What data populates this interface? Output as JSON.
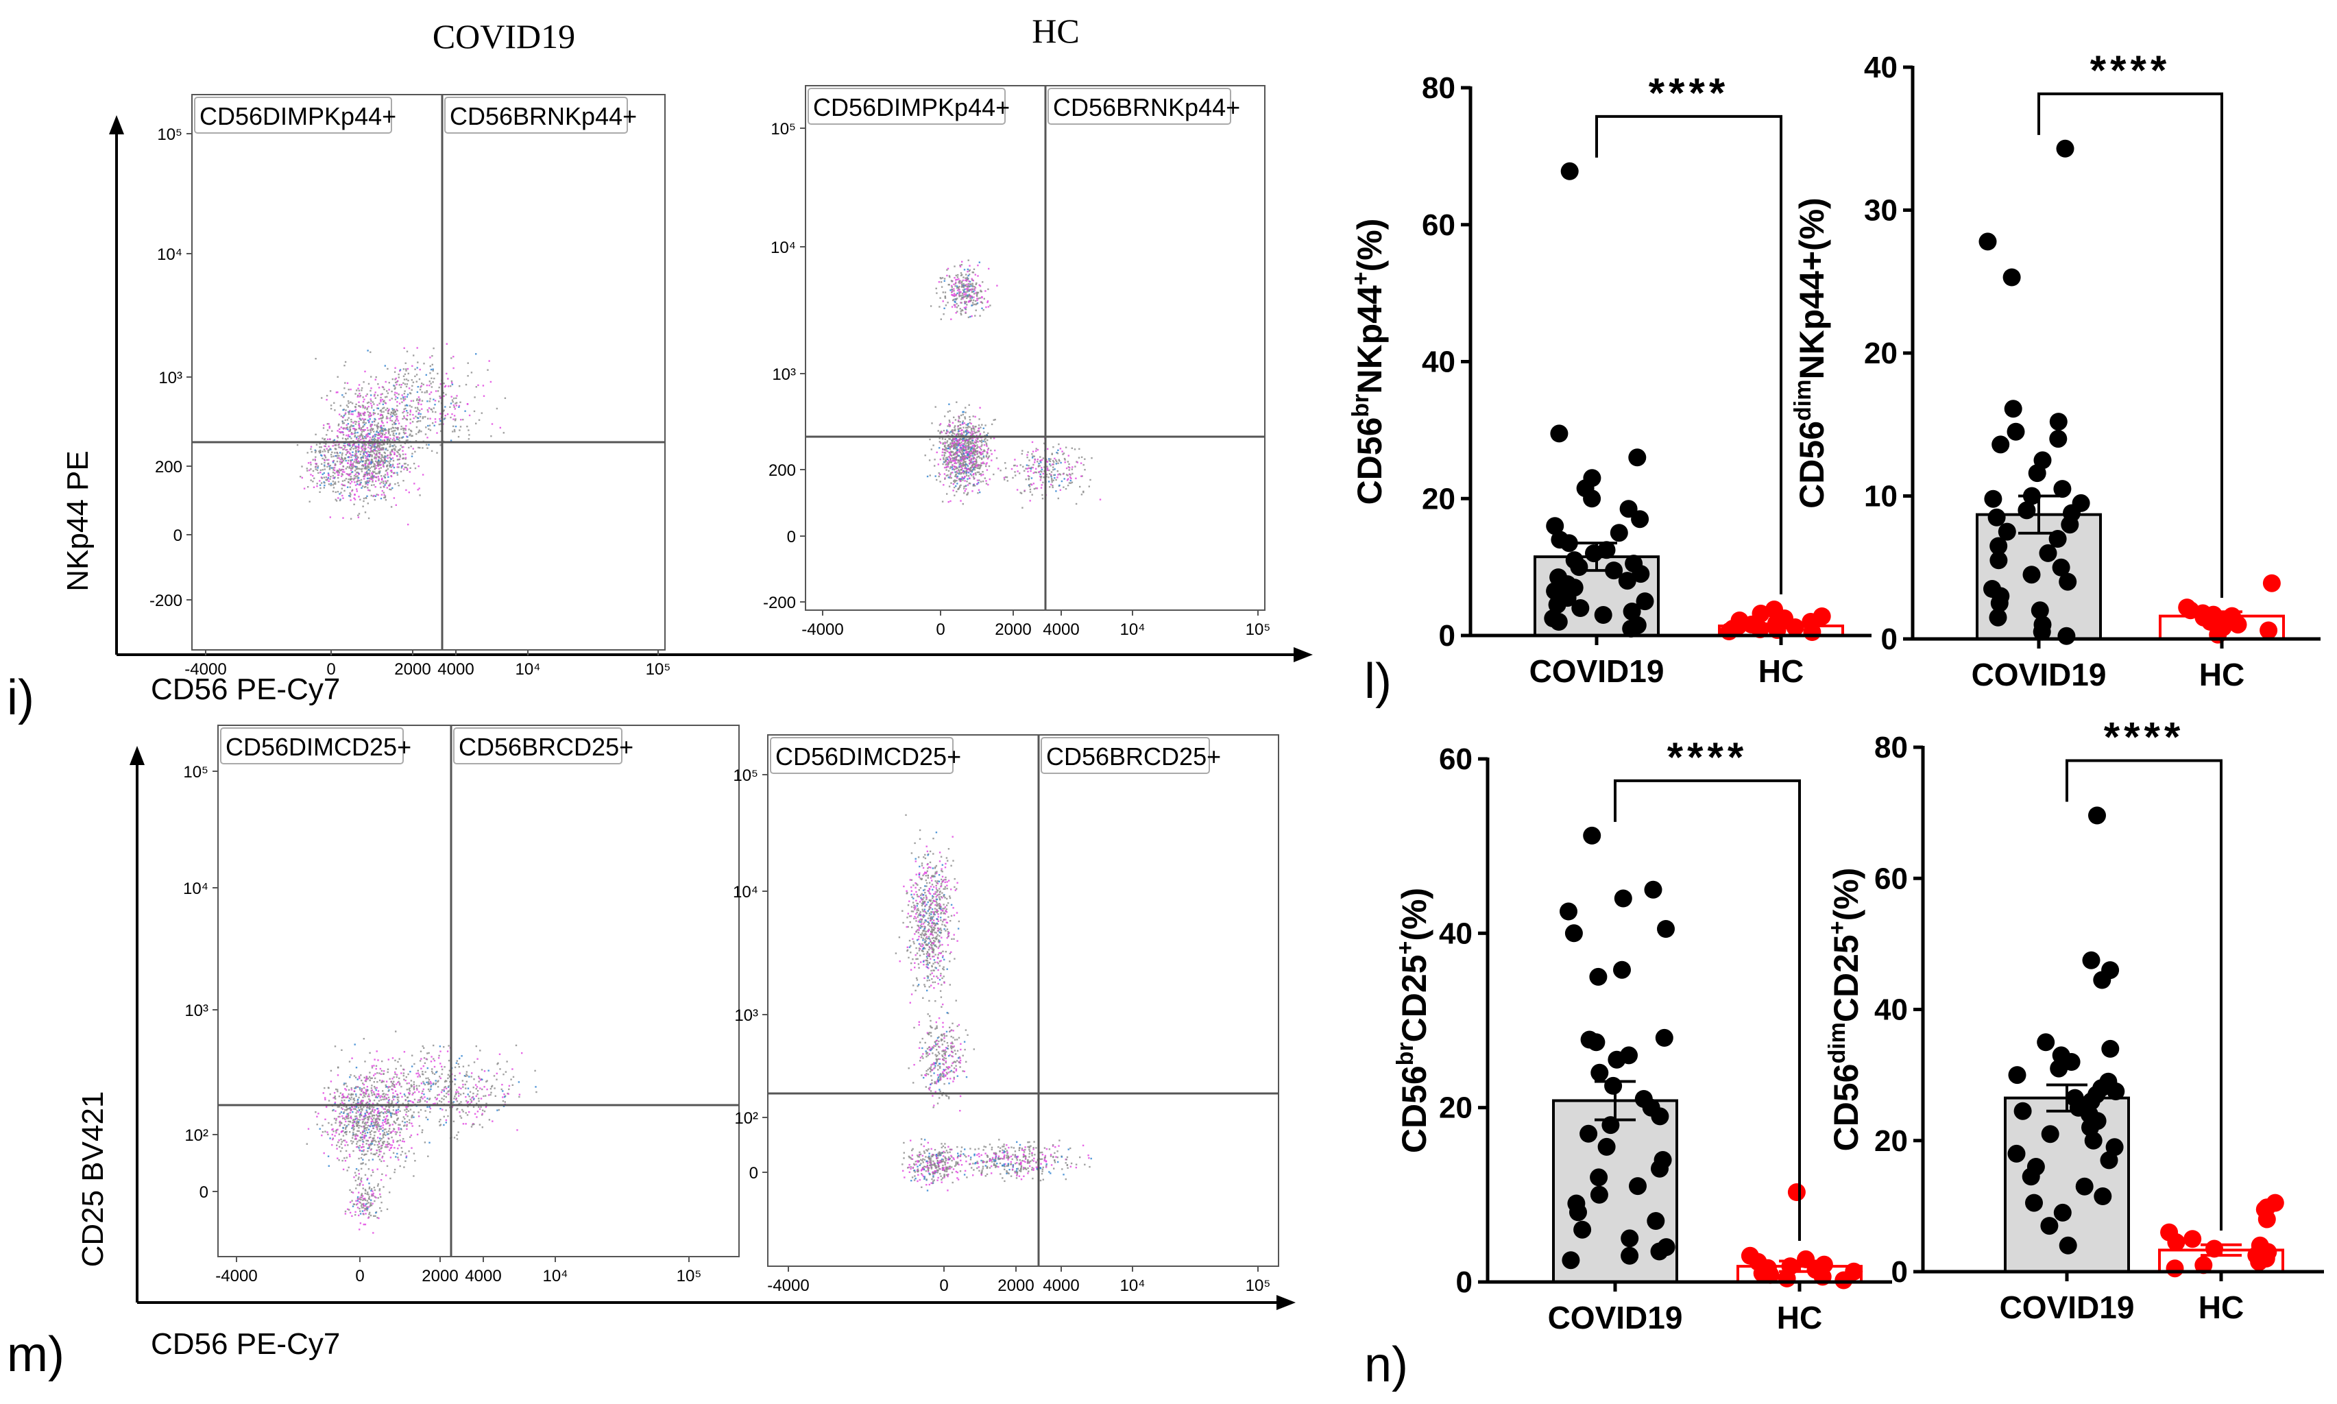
{
  "figure": {
    "panel_letters": [
      "i)",
      "l)",
      "m)",
      "n)"
    ],
    "column_titles": [
      "COVID19",
      "HC"
    ],
    "colors": {
      "covid": "#000000",
      "hc": "#ff0000",
      "bar": "#d9d9d9",
      "gate": "#555555",
      "dot_gray": "#888888",
      "dot_magenta": "#e040e0",
      "dot_blue": "#2a7fd0"
    }
  },
  "flow_rows": [
    {
      "id": "nkp44",
      "ylabel": "NKp44 PE",
      "xlabel": "CD56 PE-Cy7",
      "gate_labels": [
        [
          "CD56DIMPKp44+",
          "CD56BRNKp44+"
        ],
        [
          "CD56DIMPKp44+",
          "CD56BRNKp44+"
        ]
      ],
      "yticks": [
        [
          "10⁵",
          "10⁴",
          "10³",
          "200",
          "0",
          "-200"
        ],
        [
          "10⁵",
          "10⁴",
          "10³",
          "200",
          "0",
          "-200"
        ]
      ],
      "xticks": [
        [
          "-4000",
          "0",
          "2000",
          "4000",
          "10⁴",
          "10⁵"
        ],
        [
          "-4000",
          "0",
          "2000",
          "4000",
          "10⁴",
          "10⁵"
        ]
      ]
    },
    {
      "id": "cd25",
      "ylabel": "CD25  BV421",
      "xlabel": "CD56 PE-Cy7",
      "gate_labels": [
        [
          "CD56DIMCD25+",
          "CD56BRCD25+"
        ],
        [
          "CD56DIMCD25+",
          "CD56BRCD25+"
        ]
      ],
      "yticks": [
        [
          "10⁵",
          "10⁴",
          "10³",
          "10²",
          "0"
        ],
        [
          "10⁵",
          "10⁴",
          "10³",
          "10²",
          "0"
        ]
      ],
      "xticks": [
        [
          "-4000",
          "0",
          "2000",
          "4000",
          "10⁴",
          "10⁵"
        ],
        [
          "-4000",
          "0",
          "2000",
          "4000",
          "10⁴",
          "10⁵"
        ]
      ]
    }
  ],
  "chart_data": [
    {
      "type": "bar",
      "id": "br_nkp44",
      "ylabel_parts": [
        "CD56",
        "br",
        "NKp44",
        "+",
        "(%)"
      ],
      "categories": [
        "COVID19",
        "HC"
      ],
      "means": [
        11.5,
        1.4
      ],
      "sem": [
        2.0,
        0.3
      ],
      "ylim": [
        0,
        80
      ],
      "yticks": [
        0,
        20,
        40,
        60,
        80
      ],
      "significance": "****",
      "points": [
        [
          67.8,
          29.5,
          26.0,
          23.0,
          21.5,
          20.0,
          18.5,
          17.0,
          16.0,
          15.0,
          14.0,
          13.5,
          12.5,
          12.0,
          11.0,
          10.5,
          10.0,
          9.5,
          9.0,
          8.5,
          8.0,
          7.5,
          7.0,
          6.5,
          6.0,
          5.5,
          5.0,
          4.5,
          4.0,
          3.5,
          3.0,
          2.5,
          2.0,
          1.5,
          1.0
        ],
        [
          3.8,
          3.2,
          2.8,
          2.5,
          2.2,
          2.0,
          1.8,
          1.6,
          1.4,
          1.2,
          1.0,
          0.9,
          0.8,
          0.6,
          0.5
        ]
      ]
    },
    {
      "type": "bar",
      "id": "dim_nkp44",
      "ylabel_parts": [
        "CD56",
        "dim",
        "NKp44+(%)",
        "",
        ""
      ],
      "categories": [
        "COVID19",
        "HC"
      ],
      "means": [
        8.7,
        1.6
      ],
      "sem": [
        1.3,
        0.3
      ],
      "ylim": [
        0,
        40
      ],
      "yticks": [
        0,
        10,
        20,
        30,
        40
      ],
      "significance": "****",
      "points": [
        [
          34.3,
          27.8,
          25.3,
          16.1,
          15.2,
          14.5,
          14.0,
          13.6,
          12.5,
          11.6,
          10.5,
          10.0,
          9.8,
          9.5,
          9.0,
          8.8,
          8.5,
          8.0,
          7.5,
          7.0,
          6.5,
          6.0,
          5.5,
          5.0,
          4.5,
          4.0,
          3.5,
          3.0,
          2.5,
          2.0,
          1.5,
          1.0,
          0.5,
          0.2
        ],
        [
          3.9,
          2.2,
          2.0,
          1.8,
          1.7,
          1.6,
          1.5,
          1.4,
          1.3,
          1.2,
          1.0,
          0.8,
          0.6,
          0.3
        ]
      ]
    },
    {
      "type": "bar",
      "id": "br_cd25",
      "ylabel_parts": [
        "CD56",
        "br",
        "CD25",
        "+",
        "(%)"
      ],
      "categories": [
        "COVID19",
        "HC"
      ],
      "means": [
        20.8,
        1.8
      ],
      "sem": [
        2.2,
        0.6
      ],
      "ylim": [
        0,
        60
      ],
      "yticks": [
        0,
        20,
        40,
        60
      ],
      "significance": "****",
      "points": [
        [
          51.2,
          45.0,
          44.0,
          42.5,
          40.5,
          40.0,
          35.8,
          35.0,
          28.0,
          27.8,
          27.5,
          26.0,
          25.5,
          24.0,
          22.5,
          21.0,
          20.0,
          19.0,
          18.0,
          17.0,
          15.5,
          14.0,
          13.0,
          12.0,
          11.0,
          10.0,
          9.0,
          8.0,
          7.0,
          6.0,
          5.0,
          4.0,
          3.5,
          3.0,
          2.5
        ],
        [
          10.3,
          3.0,
          2.6,
          2.3,
          2.0,
          1.8,
          1.6,
          1.4,
          1.2,
          1.0,
          0.8,
          0.6,
          0.4,
          0.2
        ]
      ]
    },
    {
      "type": "bar",
      "id": "dim_cd25",
      "ylabel_parts": [
        "CD56",
        "dim",
        "CD25",
        "+",
        "(%)"
      ],
      "categories": [
        "COVID19",
        "HC"
      ],
      "means": [
        26.5,
        3.3
      ],
      "sem": [
        2.0,
        0.8
      ],
      "ylim": [
        0,
        80
      ],
      "yticks": [
        0,
        20,
        40,
        60,
        80
      ],
      "significance": "****",
      "points": [
        [
          69.6,
          47.5,
          46.0,
          44.5,
          35.0,
          34.0,
          33.0,
          32.0,
          31.0,
          30.0,
          29.0,
          28.0,
          27.5,
          27.0,
          26.5,
          26.0,
          25.0,
          24.5,
          24.0,
          23.0,
          22.0,
          21.0,
          20.0,
          19.0,
          18.0,
          17.0,
          16.0,
          14.5,
          13.0,
          11.5,
          10.5,
          9.0,
          7.0,
          4.0
        ],
        [
          10.5,
          9.8,
          9.5,
          8.0,
          6.0,
          5.0,
          4.5,
          4.0,
          3.5,
          3.0,
          2.5,
          2.0,
          1.5,
          1.0,
          0.5
        ]
      ]
    }
  ]
}
